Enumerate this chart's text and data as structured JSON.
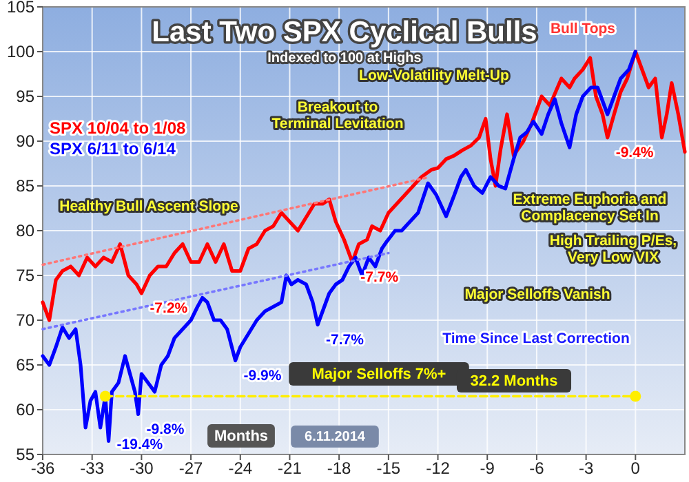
{
  "chart_data": {
    "type": "line",
    "title": "Last Two SPX Cyclical Bulls",
    "subtitle": "Indexed to 100 at Highs",
    "xlim": [
      -36,
      3
    ],
    "xticks": [
      -36,
      -33,
      -30,
      -27,
      -24,
      -21,
      -18,
      -15,
      -12,
      -9,
      -6,
      -3,
      0
    ],
    "ylim": [
      55,
      105
    ],
    "yticks": [
      55,
      60,
      65,
      70,
      75,
      80,
      85,
      90,
      95,
      100,
      105
    ],
    "grid": true,
    "legend": "top left",
    "marker": "none",
    "line_style": "solid",
    "series": [
      {
        "name": "SPX 10/04 to 1/08",
        "color": "#ff0000",
        "x": [
          -36,
          -35.6,
          -35.2,
          -34.8,
          -34.3,
          -33.8,
          -33.3,
          -32.8,
          -32.3,
          -31.8,
          -31.3,
          -30.8,
          -30.3,
          -30,
          -29.5,
          -29,
          -28.5,
          -28,
          -27.5,
          -27,
          -26.5,
          -26,
          -25.5,
          -25,
          -24.5,
          -24,
          -23.5,
          -23,
          -22.5,
          -22,
          -21.5,
          -21,
          -20.5,
          -20,
          -19.5,
          -19,
          -18.6,
          -18.2,
          -17.7,
          -17.2,
          -16.8,
          -16.3,
          -16,
          -15.5,
          -15,
          -14.5,
          -14,
          -13.5,
          -13,
          -12.4,
          -12,
          -11.5,
          -11,
          -10.5,
          -10,
          -9.5,
          -9.1,
          -8.8,
          -8.5,
          -8.2,
          -7.8,
          -7.4,
          -6.8,
          -6.3,
          -5.7,
          -5.2,
          -4.5,
          -4,
          -3.7,
          -3.2,
          -2.75,
          -2.4,
          -2,
          -1.7,
          -1.3,
          -0.9,
          -0.5,
          0,
          0.4,
          0.8,
          1.2,
          1.6,
          1.9,
          2.2,
          2.6,
          3
        ],
        "values": [
          72,
          70,
          74.5,
          75.5,
          76,
          75,
          77,
          76,
          77,
          76.5,
          78.5,
          75,
          74,
          73,
          75,
          76,
          76,
          77.5,
          78.5,
          76.5,
          76.5,
          78.5,
          76.5,
          78.5,
          75.5,
          75.5,
          78,
          78.5,
          80,
          80.5,
          82,
          81,
          80,
          81.5,
          83,
          83,
          83.5,
          81,
          79,
          76.5,
          78.5,
          79,
          80.5,
          80,
          82,
          83,
          84,
          85,
          86,
          86.8,
          87,
          88,
          88.4,
          89,
          89.5,
          90.4,
          92.5,
          88,
          85,
          89,
          93,
          88.4,
          90,
          92,
          95,
          94,
          97,
          96,
          97,
          98,
          99.3,
          95,
          93,
          90.4,
          93,
          95.5,
          97,
          100,
          98,
          96,
          97,
          90.4,
          93,
          96.5,
          93,
          88.8
        ]
      },
      {
        "name": "SPX 6/11 to 6/14",
        "color": "#0000ff",
        "x": [
          -36,
          -35.6,
          -35.2,
          -34.8,
          -34.4,
          -34,
          -33.7,
          -33.4,
          -33.1,
          -32.8,
          -32.5,
          -32.2,
          -32,
          -31.8,
          -31.4,
          -31,
          -30.7,
          -30.4,
          -30.2,
          -30,
          -29.6,
          -29.2,
          -28.8,
          -28.4,
          -28,
          -27.5,
          -27,
          -26.6,
          -26.3,
          -26,
          -25.6,
          -25.2,
          -24.8,
          -24.3,
          -24,
          -23.5,
          -23,
          -22.5,
          -22,
          -21.5,
          -21.2,
          -20.9,
          -20.5,
          -20,
          -19.6,
          -19.3,
          -19,
          -18.6,
          -18.2,
          -17.8,
          -17.4,
          -17,
          -16.6,
          -16.2,
          -15.8,
          -15.4,
          -15.1,
          -14.6,
          -14.2,
          -13.7,
          -13.2,
          -12.6,
          -12.1,
          -11.5,
          -11,
          -10.6,
          -10.3,
          -9.8,
          -9.3,
          -8.8,
          -8.3,
          -7.9,
          -7.4,
          -7,
          -6.6,
          -6.2,
          -5.7,
          -5.3,
          -4.9,
          -4.5,
          -4,
          -3.6,
          -3.2,
          -2.7,
          -2.3,
          -1.7,
          -1.3,
          -0.9,
          -0.4,
          0
        ],
        "values": [
          66,
          65,
          67,
          69.2,
          68,
          69,
          65,
          58,
          61,
          62,
          58,
          61.5,
          56.5,
          62,
          63,
          66,
          64,
          62,
          59.5,
          64,
          63,
          62,
          65,
          66,
          68,
          69,
          70,
          71.5,
          72.5,
          72,
          70,
          70,
          69,
          65.5,
          67,
          68.5,
          70,
          71,
          71.5,
          72,
          75,
          74,
          74.5,
          74,
          72,
          69.5,
          71,
          73,
          74,
          74.5,
          76,
          77,
          75,
          77,
          76,
          78,
          78.8,
          80,
          80,
          81,
          82,
          85.3,
          84,
          81.6,
          84,
          86,
          86.8,
          85,
          84.2,
          86,
          85,
          84.7,
          88,
          90.4,
          91,
          92.2,
          90.8,
          93,
          94.7,
          92,
          89.3,
          93,
          95,
          96,
          96,
          93,
          95,
          97,
          98,
          100
        ]
      },
      {
        "color": "#ff7777",
        "x": [
          -36,
          -12.5
        ],
        "values": [
          76.2,
          86
        ],
        "line_style": "dotted"
      },
      {
        "color": "#7777ff",
        "x": [
          -36,
          -15
        ],
        "values": [
          69,
          77.5
        ],
        "line_style": "dotted"
      },
      {
        "color": "#ffee00",
        "x": [
          -32.2,
          0
        ],
        "values": [
          61.5,
          61.5
        ],
        "line_style": "dashed",
        "marker": "circle"
      }
    ],
    "annotations": [
      {
        "text": "-7.2%",
        "x": -30,
        "y": 73
      },
      {
        "text": "-7.7%",
        "x": -17.2,
        "y": 76.5
      },
      {
        "text": "-9.4%",
        "x": -1.7,
        "y": 90.4
      },
      {
        "text": "-19.4%",
        "x": -32,
        "y": 56.5
      },
      {
        "text": "-9.8%",
        "x": -30.2,
        "y": 59.5
      },
      {
        "text": "-9.9%",
        "x": -24.3,
        "y": 65.5
      },
      {
        "text": "-7.7%",
        "x": -19.3,
        "y": 69.5
      },
      "Healthy Bull Ascent Slope",
      "Breakout to\nTerminal Levitation",
      "Low-Volatility Melt-Up",
      "Bull Tops",
      "Extreme Euphoria and\nComplacency Set In",
      "High Trailing P/Es,\nVery Low VIX",
      "Major Selloffs Vanish",
      "Major Selloffs 7%+",
      "Time Since Last Correction",
      "32.2 Months",
      "Months",
      "6.11.2014"
    ]
  }
}
